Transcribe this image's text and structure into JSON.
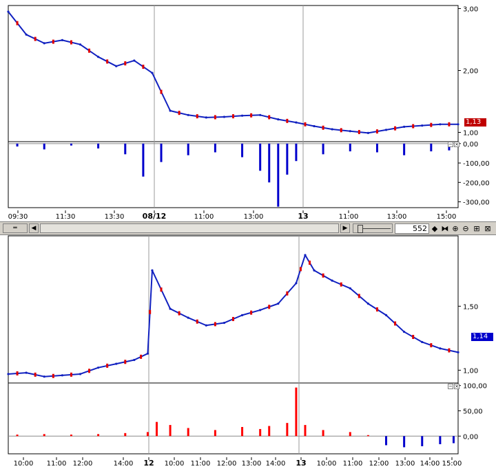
{
  "colors": {
    "up": "#e00000",
    "down": "#1020c0",
    "volume_pos": "#ff0000",
    "volume_neg": "#0000cc",
    "badge_red": "#c00000",
    "badge_blue": "#0000cc"
  },
  "toolbar": {
    "zoom_value": "552"
  },
  "chart_data": [
    {
      "type": "line",
      "panel": "top-price",
      "x_ticks": [
        "09:30",
        "11:30",
        "13:30",
        "08/12",
        "11:00",
        "13:00",
        "13",
        "11:00",
        "13:00",
        "15:00"
      ],
      "y_ticks": [
        "3,00",
        "2,00",
        "1,00"
      ],
      "last_value_badge": "1,13",
      "ylim": [
        0.85,
        3.05
      ],
      "session_dividers": [
        "08/12",
        "13"
      ],
      "x": [
        0,
        4,
        8,
        12,
        16,
        20,
        24,
        28,
        32,
        36,
        40,
        44,
        48,
        52,
        56,
        60,
        64,
        68,
        72,
        76,
        80,
        84,
        88,
        92,
        96,
        100
      ],
      "y": [
        2.95,
        2.58,
        2.44,
        2.49,
        2.42,
        2.22,
        2.07,
        2.16,
        1.96,
        1.35,
        1.28,
        1.24,
        1.25,
        1.27,
        1.28,
        1.21,
        1.16,
        1.1,
        1.05,
        1.02,
        0.99,
        1.04,
        1.09,
        1.11,
        1.13,
        1.13
      ]
    },
    {
      "type": "bar",
      "panel": "top-volume",
      "y_ticks": [
        "0,00",
        "-100,00",
        "-200,00",
        "-300,00"
      ],
      "ylim": [
        -330,
        10
      ],
      "x": [
        2,
        8,
        14,
        20,
        26,
        30,
        34,
        40,
        46,
        52,
        56,
        58,
        60,
        62,
        64,
        70,
        76,
        82,
        88,
        94,
        98
      ],
      "values": [
        -15,
        -30,
        -10,
        -25,
        -55,
        -170,
        -95,
        -60,
        -45,
        -70,
        -140,
        -200,
        -325,
        -160,
        -90,
        -55,
        -40,
        -45,
        -60,
        -40,
        -35
      ]
    },
    {
      "type": "line",
      "panel": "bottom-price",
      "x_ticks": [
        "10:00",
        "11:00",
        "12:00",
        "14:00",
        "12",
        "10:00",
        "11:00",
        "12:00",
        "13:00",
        "14:00",
        "13",
        "10:00",
        "11:00",
        "12:00",
        "13:00",
        "14:00",
        "15:00"
      ],
      "y_ticks": [
        "1,50",
        "1,00"
      ],
      "last_value_badge": "1,14",
      "ylim": [
        0.9,
        2.05
      ],
      "session_dividers": [
        "12",
        "13"
      ],
      "x": [
        0,
        4,
        8,
        12,
        16,
        20,
        24,
        28,
        31,
        32,
        36,
        40,
        44,
        48,
        52,
        56,
        60,
        64,
        66,
        68,
        72,
        76,
        80,
        84,
        88,
        92,
        96,
        100
      ],
      "y": [
        0.97,
        0.98,
        0.95,
        0.96,
        0.97,
        1.02,
        1.05,
        1.08,
        1.13,
        1.78,
        1.48,
        1.41,
        1.35,
        1.37,
        1.43,
        1.47,
        1.52,
        1.68,
        1.9,
        1.78,
        1.7,
        1.64,
        1.52,
        1.43,
        1.3,
        1.22,
        1.17,
        1.14
      ]
    },
    {
      "type": "bar",
      "panel": "bottom-volume",
      "y_ticks": [
        "100,00",
        "50,00",
        "0,00"
      ],
      "ylim": [
        -35,
        105
      ],
      "x": [
        2,
        8,
        14,
        20,
        26,
        31,
        33,
        36,
        40,
        46,
        52,
        56,
        58,
        62,
        64,
        66,
        70,
        76,
        80,
        84,
        88,
        92,
        96,
        99
      ],
      "values": [
        3,
        4,
        3,
        4,
        6,
        8,
        28,
        22,
        16,
        12,
        18,
        14,
        20,
        26,
        96,
        22,
        12,
        8,
        2,
        -18,
        -22,
        -20,
        -16,
        -14
      ]
    }
  ]
}
